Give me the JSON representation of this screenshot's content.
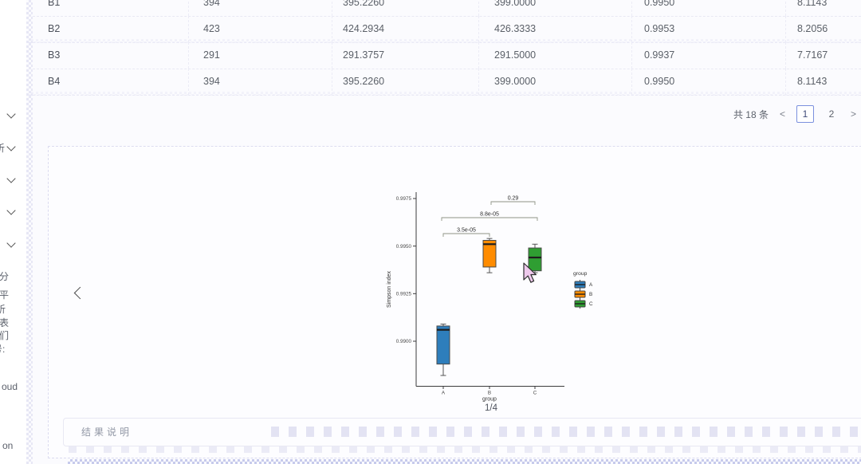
{
  "table": {
    "rows": [
      [
        "B1",
        "394",
        "395.2260",
        "399.0000",
        "0.9950",
        "8.1143"
      ],
      [
        "B2",
        "423",
        "424.2934",
        "426.3333",
        "0.9953",
        "8.2056"
      ],
      [
        "B3",
        "291",
        "291.3757",
        "291.5000",
        "0.9937",
        "7.7167"
      ],
      [
        "B4",
        "394",
        "395.2260",
        "399.0000",
        "0.9950",
        "8.1143"
      ]
    ]
  },
  "pagination": {
    "total_label": "共 18 条",
    "prev": "<",
    "next": ">",
    "pages": [
      "1",
      "2"
    ],
    "active_page": "1"
  },
  "carousel": {
    "page_indicator": "1/4"
  },
  "result_panel": {
    "label": "结果说明"
  },
  "sidebar": {
    "fragments": [
      "析",
      "部分",
      "水平",
      "析",
      "图表",
      "我们",
      "号:",
      "oud",
      "on"
    ]
  },
  "colors": {
    "accent": "#7b90de",
    "group_a": "#2e7ebc",
    "group_b": "#ff8c00",
    "group_c": "#2f9e32"
  },
  "chart_data": {
    "type": "box",
    "title": "",
    "xlabel": "group",
    "ylabel": "Simpson index",
    "legend_title": "group",
    "categories": [
      "A",
      "B",
      "C"
    ],
    "yticks": [
      0.99,
      0.9925,
      0.995,
      0.9975
    ],
    "ytick_labels": [
      "0.9900",
      "0.9925",
      "0.9950",
      "0.9975"
    ],
    "ylim": [
      0.9878,
      0.9979
    ],
    "grid": false,
    "legend_position": "right",
    "series": [
      {
        "name": "A",
        "color": "#2e7ebc",
        "whisker_low": 0.9882,
        "q1": 0.9888,
        "median": 0.9906,
        "q3": 0.9908,
        "whisker_high": 0.9909
      },
      {
        "name": "B",
        "color": "#ff8c00",
        "whisker_low": 0.9936,
        "q1": 0.9939,
        "median": 0.9951,
        "q3": 0.9953,
        "whisker_high": 0.9954
      },
      {
        "name": "C",
        "color": "#2f9e32",
        "whisker_low": 0.9936,
        "q1": 0.9937,
        "median": 0.9944,
        "q3": 0.9949,
        "whisker_high": 0.9951
      }
    ],
    "annotations": [
      {
        "groups": [
          "A",
          "B"
        ],
        "label": "3.5e-05"
      },
      {
        "groups": [
          "A",
          "C"
        ],
        "label": "8.8e-05"
      },
      {
        "groups": [
          "B",
          "C"
        ],
        "label": "0.29"
      }
    ]
  }
}
